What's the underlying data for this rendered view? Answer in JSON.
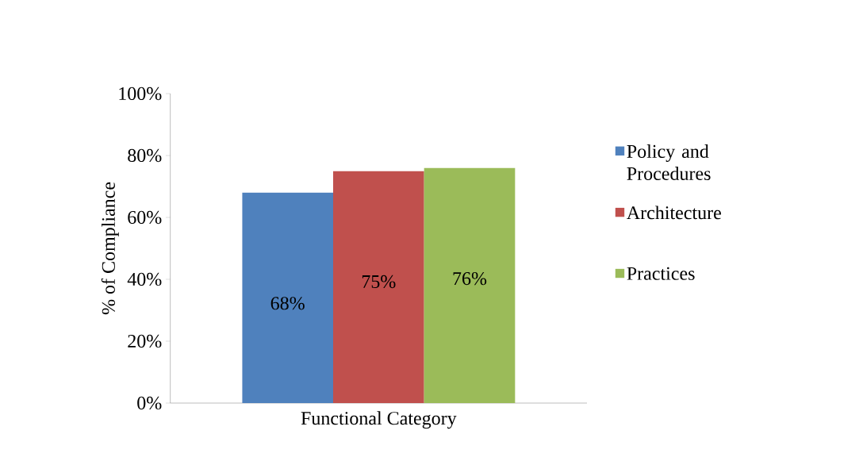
{
  "chart_data": {
    "type": "bar",
    "categories": [
      "Functional Category"
    ],
    "ylabel": "% of Compliance",
    "ylim": [
      0,
      100
    ],
    "yticks": [
      {
        "value": 0,
        "label": "0%"
      },
      {
        "value": 20,
        "label": "20%"
      },
      {
        "value": 40,
        "label": "40%"
      },
      {
        "value": 60,
        "label": "60%"
      },
      {
        "value": 80,
        "label": "80%"
      },
      {
        "value": 100,
        "label": "100%"
      }
    ],
    "series": [
      {
        "name": "Policy and Procedures",
        "color": "#4f81bd",
        "values": [
          68
        ],
        "value_labels": [
          "68%"
        ]
      },
      {
        "name": "Architecture",
        "color": "#c0504d",
        "values": [
          75
        ],
        "value_labels": [
          "75%"
        ]
      },
      {
        "name": "Practices",
        "color": "#9bbb59",
        "values": [
          76
        ],
        "value_labels": [
          "76%"
        ]
      }
    ],
    "legend": "right",
    "grid": false
  }
}
